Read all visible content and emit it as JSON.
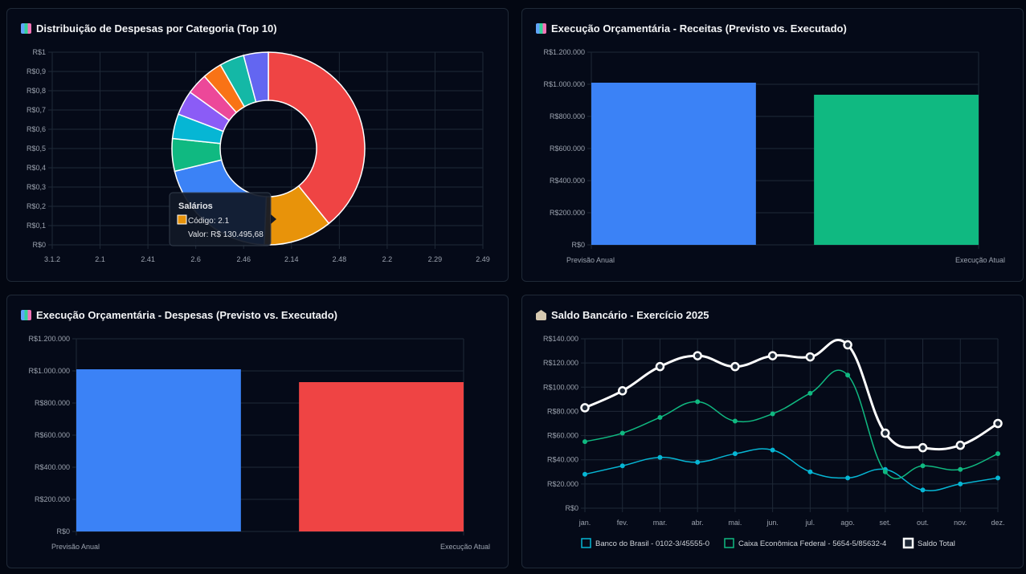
{
  "panels": {
    "p1_title": "Distribuição de Despesas por Categoria (Top 10)",
    "p2_title": "Execução Orçamentária - Receitas (Previsto vs. Executado)",
    "p3_title": "Execução Orçamentária - Despesas (Previsto vs. Executado)",
    "p4_title": "Saldo Bancário - Exercício 2025",
    "p1_icon": "bar-chart-icon",
    "p2_icon": "bar-chart-icon",
    "p3_icon": "bar-chart-icon",
    "p4_icon": "bank-icon"
  },
  "chart_data": [
    {
      "type": "pie",
      "variant": "doughnut",
      "categories": [
        "3.1.2",
        "2.1",
        "2.41",
        "2.6",
        "2.46",
        "2.14",
        "2.48",
        "2.2",
        "2.29",
        "2.49"
      ],
      "values": [
        445000,
        130495.68,
        233000,
        62000,
        47000,
        47000,
        40000,
        37000,
        47000,
        47000
      ],
      "colors": [
        "#ef4444",
        "#e8930a",
        "#3b82f6",
        "#10b981",
        "#06b6d4",
        "#8b5cf6",
        "#ec4899",
        "#f97316",
        "#14b8a6",
        "#6366f1"
      ],
      "y_ticks": [
        "R$0",
        "R$0,1",
        "R$0,2",
        "R$0,3",
        "R$0,4",
        "R$0,5",
        "R$0,6",
        "R$0,7",
        "R$0,8",
        "R$0,9",
        "R$1"
      ],
      "grid": true,
      "tooltip": {
        "title": "Salários",
        "line1": "Código: 2.1",
        "line2": "Valor: R$ 130.495,68",
        "color": "#e8930a"
      }
    },
    {
      "type": "bar",
      "categories": [
        "Previsão Anual",
        "Execução Atual"
      ],
      "values": [
        1010000,
        935000
      ],
      "colors": [
        "#3b82f6",
        "#10b981"
      ],
      "ylim": [
        0,
        1200000
      ],
      "y_ticks": [
        "R$0",
        "R$200.000",
        "R$400.000",
        "R$600.000",
        "R$800.000",
        "R$1.000.000",
        "R$1.200.000"
      ],
      "grid": true
    },
    {
      "type": "bar",
      "categories": [
        "Previsão Anual",
        "Execução Atual"
      ],
      "values": [
        1010000,
        930000
      ],
      "colors": [
        "#3b82f6",
        "#ef4444"
      ],
      "ylim": [
        0,
        1200000
      ],
      "y_ticks": [
        "R$0",
        "R$200.000",
        "R$400.000",
        "R$600.000",
        "R$800.000",
        "R$1.000.000",
        "R$1.200.000"
      ],
      "grid": true
    },
    {
      "type": "line",
      "categories": [
        "jan.",
        "fev.",
        "mar.",
        "abr.",
        "mai.",
        "jun.",
        "jul.",
        "ago.",
        "set.",
        "out.",
        "nov.",
        "dez."
      ],
      "series": [
        {
          "name": "Banco do Brasil - 0102-3/45555-0",
          "color": "#06b6d4",
          "values": [
            28000,
            35000,
            42000,
            38000,
            45000,
            48000,
            30000,
            25000,
            32000,
            15000,
            20000,
            25000
          ]
        },
        {
          "name": "Caixa Econômica Federal - 5654-5/85632-4",
          "color": "#10b981",
          "values": [
            55000,
            62000,
            75000,
            88000,
            72000,
            78000,
            95000,
            110000,
            30000,
            35000,
            32000,
            45000
          ]
        },
        {
          "name": "Saldo Total",
          "color": "#ffffff",
          "values": [
            83000,
            97000,
            117000,
            126000,
            117000,
            126000,
            125000,
            135000,
            62000,
            50000,
            52000,
            70000
          ]
        }
      ],
      "ylim": [
        0,
        140000
      ],
      "y_ticks": [
        "R$0",
        "R$20.000",
        "R$40.000",
        "R$60.000",
        "R$80.000",
        "R$100.000",
        "R$120.000",
        "R$140.000"
      ],
      "grid": true,
      "legend": "bottom"
    }
  ]
}
